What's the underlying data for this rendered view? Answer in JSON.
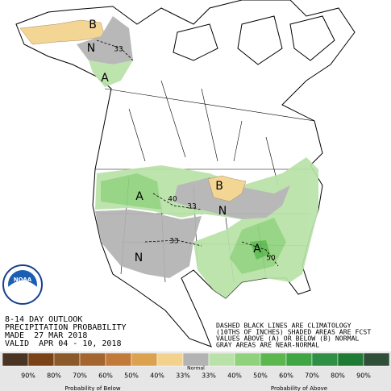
{
  "map": {
    "labels": [
      "B",
      "N",
      "A",
      "33",
      "A",
      "40",
      "33",
      "B",
      "N",
      "33",
      "N",
      "A",
      "50"
    ]
  },
  "info": [
    "8-14 DAY OUTLOOK",
    "PRECIPITATION PROBABILITY",
    "MADE  27 MAR 2018",
    "VALID  APR 04 - 10, 2018"
  ],
  "note": [
    "DASHED BLACK LINES ARE CLIMATOLOGY",
    "(10THS OF INCHES) SHADED AREAS ARE FCST",
    "VALUES ABOVE (A) OR BELOW (B) NORMAL",
    "GRAY AREAS ARE NEAR-NORMAL"
  ],
  "logo": "NOAA",
  "legend": {
    "colors": [
      "#4a3525",
      "#7b4218",
      "#8b5a2b",
      "#a5652f",
      "#c27a3a",
      "#dba350",
      "#f2d28c",
      "#b3b3b3",
      "#b9e2a8",
      "#90d27c",
      "#5cb84e",
      "#3fa643",
      "#2f8f45",
      "#1f7a33",
      "#2f4f38"
    ],
    "labels": [
      "90%",
      "80%",
      "70%",
      "60%",
      "50%",
      "40%",
      "33%",
      "33%",
      "40%",
      "50%",
      "60%",
      "70%",
      "80%",
      "90%"
    ],
    "normal": "Normal",
    "below": "Probability of Below",
    "above": "Probability of Above"
  }
}
